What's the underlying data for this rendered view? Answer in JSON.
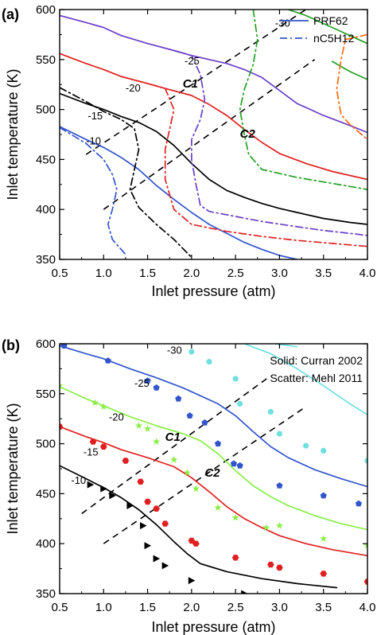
{
  "chart_data": [
    {
      "type": "line",
      "panel_label": "(a)",
      "xlabel": "Inlet pressure (atm)",
      "ylabel": "Inlet temperature (K)",
      "xlim": [
        0.5,
        4.0
      ],
      "ylim": [
        350,
        600
      ],
      "xticks": [
        "0.5",
        "1.0",
        "1.5",
        "2.0",
        "2.5",
        "3.0",
        "3.5",
        "4.0"
      ],
      "yticks": [
        "350",
        "400",
        "450",
        "500",
        "550",
        "600"
      ],
      "legend": {
        "position": "top-right",
        "entries": [
          {
            "label": "PRF62",
            "style": "solid",
            "color": "#3355cc"
          },
          {
            "label": "nC5H12",
            "style": "dashdot",
            "color": "#3355cc"
          }
        ]
      },
      "colors": {
        "c10": "#3355cc",
        "c15": "#000000",
        "c20": "#e02020",
        "c25": "#6a3fc9",
        "c30": "#22a022",
        "c35": "#ff6a10"
      },
      "series": [
        {
          "group": "-10",
          "style": "solid",
          "color": "#3355cc",
          "x": [
            0.5,
            0.8,
            1.0,
            1.2,
            1.4,
            1.6,
            1.8,
            2.0,
            2.2,
            2.4,
            2.6,
            2.8,
            3.0,
            3.2
          ],
          "y": [
            483,
            470,
            462,
            452,
            440,
            424,
            410,
            397,
            385,
            376,
            367,
            360,
            354,
            350
          ]
        },
        {
          "group": "-10",
          "style": "dashdot",
          "color": "#3355cc",
          "x": [
            0.5,
            0.8,
            1.0,
            1.1,
            1.15,
            1.1,
            1.05,
            1.1,
            1.25
          ],
          "y": [
            482,
            466,
            450,
            435,
            420,
            400,
            385,
            370,
            355
          ]
        },
        {
          "group": "-15",
          "style": "solid",
          "color": "#000000",
          "x": [
            0.5,
            0.8,
            1.0,
            1.2,
            1.4,
            1.6,
            1.8,
            2.0,
            2.2,
            2.4,
            2.6,
            2.8,
            3.0,
            3.2,
            3.5,
            3.8,
            4.0
          ],
          "y": [
            516,
            506,
            500,
            493,
            487,
            478,
            464,
            446,
            430,
            419,
            412,
            406,
            401,
            397,
            391,
            387,
            385
          ]
        },
        {
          "group": "-15",
          "style": "dashdot",
          "color": "#000000",
          "x": [
            0.5,
            0.8,
            1.0,
            1.2,
            1.35,
            1.4,
            1.35,
            1.3,
            1.4,
            1.6,
            1.8,
            2.0
          ],
          "y": [
            522,
            508,
            498,
            490,
            481,
            460,
            440,
            420,
            402,
            385,
            370,
            352
          ]
        },
        {
          "group": "-20",
          "style": "solid",
          "color": "#e02020",
          "x": [
            0.5,
            0.8,
            1.0,
            1.2,
            1.5,
            1.7,
            2.0,
            2.2,
            2.4,
            2.6,
            2.8,
            3.0,
            3.3,
            3.6,
            4.0
          ],
          "y": [
            556,
            546,
            540,
            533,
            526,
            521,
            514,
            505,
            494,
            480,
            467,
            456,
            446,
            438,
            430
          ]
        },
        {
          "group": "-20",
          "style": "dashdot",
          "color": "#e02020",
          "x": [
            1.2,
            1.5,
            1.7,
            1.8,
            1.75,
            1.7,
            1.7,
            1.8,
            2.0,
            2.4,
            2.8,
            3.2,
            3.6,
            4.0
          ],
          "y": [
            533,
            526,
            521,
            500,
            480,
            460,
            430,
            400,
            385,
            378,
            373,
            369,
            366,
            363
          ]
        },
        {
          "group": "-25",
          "style": "solid",
          "color": "#6a3fc9",
          "x": [
            0.5,
            0.8,
            1.0,
            1.2,
            1.5,
            1.8,
            2.0,
            2.2,
            2.4,
            2.6,
            2.8,
            3.0,
            3.2,
            3.5,
            3.8,
            4.0
          ],
          "y": [
            594,
            587,
            582,
            574,
            566,
            559,
            554,
            550,
            546,
            540,
            532,
            519,
            506,
            494,
            484,
            477
          ]
        },
        {
          "group": "-25",
          "style": "dashdot",
          "color": "#6a3fc9",
          "x": [
            1.8,
            2.0,
            2.1,
            2.15,
            2.1,
            2.0,
            2.0,
            2.05,
            2.1,
            2.2,
            2.5,
            2.8,
            3.1,
            3.5,
            3.8,
            4.0
          ],
          "y": [
            559,
            554,
            535,
            510,
            490,
            470,
            450,
            425,
            404,
            398,
            393,
            388,
            384,
            379,
            376,
            374
          ]
        },
        {
          "group": "-30",
          "style": "solid",
          "color": "#22a022",
          "x": [
            3.1,
            3.3,
            3.5,
            3.7,
            3.9,
            4.0
          ],
          "y": [
            600,
            594,
            586,
            578,
            570,
            566
          ]
        },
        {
          "group": "-30",
          "style": "dashdot",
          "color": "#22a022",
          "x": [
            2.7,
            2.75,
            2.7,
            2.6,
            2.55,
            2.6,
            2.65,
            2.8,
            3.2,
            3.6,
            4.0
          ],
          "y": [
            600,
            570,
            545,
            520,
            500,
            475,
            455,
            440,
            432,
            426,
            420
          ]
        },
        {
          "group": "-35",
          "style": "solid",
          "color": "#22a022",
          "x": [
            3.6,
            3.8,
            4.0
          ],
          "y": [
            548,
            538,
            530
          ]
        },
        {
          "group": "-35",
          "style": "dashdot",
          "color": "#ff6a10",
          "x": [
            4.0,
            3.75,
            3.7,
            3.65,
            3.7,
            3.8,
            4.0
          ],
          "y": [
            575,
            570,
            550,
            520,
            495,
            485,
            470
          ]
        }
      ],
      "guide_lines": [
        {
          "label": "C1",
          "style": "dashed",
          "x": [
            0.8,
            3.3
          ],
          "y": [
            455,
            600
          ]
        },
        {
          "label": "C2",
          "style": "dashed",
          "x": [
            1.0,
            3.4
          ],
          "y": [
            400,
            550
          ]
        }
      ],
      "annotations": [
        {
          "text": "-10",
          "x": 0.8,
          "y": 465
        },
        {
          "text": "-15",
          "x": 0.82,
          "y": 490
        },
        {
          "text": "-20",
          "x": 1.25,
          "y": 518
        },
        {
          "text": "-25",
          "x": 1.92,
          "y": 545
        },
        {
          "text": "-30",
          "x": 2.95,
          "y": 583
        },
        {
          "text": "C1",
          "x": 1.9,
          "y": 522
        },
        {
          "text": "C2",
          "x": 2.55,
          "y": 472
        }
      ]
    },
    {
      "type": "line",
      "panel_label": "(b)",
      "xlabel": "Inlet pressure (atm)",
      "ylabel": "Inlet temperature (K)",
      "xlim": [
        0.5,
        4.0
      ],
      "ylim": [
        350,
        600
      ],
      "xticks": [
        "0.5",
        "1.0",
        "1.5",
        "2.0",
        "2.5",
        "3.0",
        "3.5",
        "4.0"
      ],
      "yticks": [
        "350",
        "400",
        "450",
        "500",
        "550",
        "600"
      ],
      "note_lines": [
        "Solid: Curran 2002",
        "Scatter: Mehl 2011"
      ],
      "series": [
        {
          "group": "-10",
          "kind": "line",
          "color": "#000000",
          "x": [
            0.5,
            0.8,
            1.0,
            1.2,
            1.4,
            1.6,
            1.8,
            1.95,
            2.1,
            2.4,
            2.8,
            3.2,
            3.65
          ],
          "y": [
            478,
            465,
            456,
            446,
            434,
            419,
            402,
            390,
            380,
            372,
            365,
            360,
            356
          ]
        },
        {
          "group": "-10",
          "kind": "scatter",
          "marker": "triangle",
          "color": "#000000",
          "x": [
            0.85,
            1.0,
            1.1,
            1.3,
            1.45,
            1.5,
            1.6,
            1.7,
            2.0,
            2.6
          ],
          "y": [
            459,
            455,
            448,
            438,
            418,
            398,
            385,
            378,
            363,
            350
          ]
        },
        {
          "group": "-15",
          "kind": "line",
          "color": "#e02020",
          "x": [
            0.5,
            0.8,
            1.0,
            1.2,
            1.5,
            1.8,
            2.0,
            2.2,
            2.4,
            2.6,
            2.8,
            3.0,
            3.3,
            3.6,
            4.0
          ],
          "y": [
            517,
            507,
            501,
            494,
            486,
            477,
            466,
            452,
            437,
            425,
            416,
            408,
            400,
            394,
            388
          ]
        },
        {
          "group": "-15",
          "kind": "scatter",
          "marker": "hexagon",
          "color": "#e02020",
          "x": [
            0.5,
            0.88,
            1.0,
            1.25,
            1.42,
            1.5,
            1.6,
            1.7,
            2.0,
            2.05,
            2.5,
            2.9,
            3.0,
            3.5,
            4.0
          ],
          "y": [
            517,
            502,
            497,
            483,
            462,
            442,
            435,
            420,
            403,
            400,
            386,
            379,
            376,
            370,
            362
          ]
        },
        {
          "group": "-20",
          "kind": "line",
          "color": "#88ee44",
          "x": [
            0.5,
            0.8,
            1.0,
            1.3,
            1.6,
            1.9,
            2.1,
            2.3,
            2.5,
            2.7,
            2.9,
            3.1,
            3.4,
            3.7,
            4.0
          ],
          "y": [
            557,
            545,
            538,
            527,
            518,
            510,
            503,
            490,
            473,
            458,
            447,
            438,
            428,
            420,
            414
          ]
        },
        {
          "group": "-20",
          "kind": "scatter",
          "marker": "star",
          "color": "#88ee44",
          "x": [
            0.5,
            0.9,
            1.0,
            1.4,
            1.5,
            1.6,
            1.8,
            1.95,
            2.05,
            2.3,
            2.5,
            2.85,
            3.0,
            3.5,
            4.0
          ],
          "y": [
            558,
            541,
            537,
            518,
            515,
            502,
            484,
            471,
            455,
            436,
            426,
            416,
            418,
            405,
            398
          ]
        },
        {
          "group": "-25",
          "kind": "line",
          "color": "#3355cc",
          "x": [
            0.5,
            0.8,
            1.0,
            1.3,
            1.6,
            1.9,
            2.1,
            2.3,
            2.5,
            2.7,
            2.9,
            3.1,
            3.4,
            3.7,
            4.0
          ],
          "y": [
            598,
            590,
            585,
            575,
            566,
            556,
            548,
            540,
            528,
            512,
            497,
            486,
            474,
            465,
            457
          ]
        },
        {
          "group": "-25",
          "kind": "scatter",
          "marker": "pentagon",
          "color": "#3355cc",
          "x": [
            0.55,
            1.05,
            1.5,
            1.6,
            1.85,
            1.98,
            2.15,
            2.3,
            2.48,
            2.55,
            3.0,
            3.5,
            3.9
          ],
          "y": [
            598,
            583,
            563,
            556,
            545,
            528,
            521,
            500,
            480,
            478,
            458,
            448,
            440
          ]
        },
        {
          "group": "-30",
          "kind": "line",
          "color": "#6ee0e0",
          "x": [
            2.6,
            2.9,
            3.2,
            3.5,
            3.8,
            4.0
          ],
          "y": [
            600,
            590,
            575,
            558,
            540,
            529
          ]
        },
        {
          "group": "-30",
          "kind": "scatter",
          "marker": "circle",
          "color": "#6ee0e0",
          "x": [
            2.0,
            2.2,
            2.5,
            2.55,
            2.9,
            3.0,
            3.3,
            3.5,
            4.0
          ],
          "y": [
            592,
            582,
            565,
            540,
            532,
            510,
            498,
            493,
            483
          ]
        },
        {
          "group": "-30-top",
          "kind": "line",
          "color": "#6ee0e0",
          "x": [
            2.95,
            3.2
          ],
          "y": [
            600,
            597
          ]
        }
      ],
      "guide_lines": [
        {
          "label": "C1",
          "style": "dashed",
          "x": [
            0.75,
            2.9
          ],
          "y": [
            430,
            568
          ]
        },
        {
          "label": "C2",
          "style": "dashed",
          "x": [
            1.0,
            3.3
          ],
          "y": [
            400,
            537
          ]
        }
      ],
      "annotations": [
        {
          "text": "-10",
          "x": 0.63,
          "y": 460
        },
        {
          "text": "-15",
          "x": 0.77,
          "y": 488
        },
        {
          "text": "-20",
          "x": 1.06,
          "y": 523
        },
        {
          "text": "-25",
          "x": 1.35,
          "y": 557
        },
        {
          "text": "-30",
          "x": 1.72,
          "y": 590
        },
        {
          "text": "C1",
          "x": 1.7,
          "y": 503
        },
        {
          "text": "C2",
          "x": 2.15,
          "y": 467
        }
      ]
    }
  ]
}
